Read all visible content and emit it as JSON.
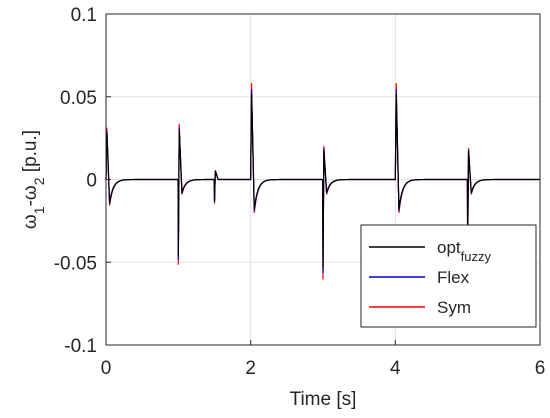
{
  "chart_data": {
    "type": "line",
    "xlabel": "Time [s]",
    "ylabel": {
      "main": "ω",
      "s1": "1",
      "mid": "-ω",
      "s2": "2",
      "unit": " [p.u.]"
    },
    "xlim": [
      0,
      6
    ],
    "ylim": [
      -0.1,
      0.1
    ],
    "xticks": [
      0,
      2,
      4,
      6
    ],
    "xtick_labels": [
      "0",
      "2",
      "4",
      "6"
    ],
    "yticks": [
      0.1,
      0.05,
      0,
      -0.05,
      -0.1
    ],
    "ytick_labels": [
      "0.1",
      "0.05",
      "0",
      "-0.05",
      "-0.1"
    ],
    "grid": true,
    "legend_position": "bottom-right",
    "events": [
      {
        "t": 0.0,
        "dip": 0.0,
        "peak": 0.028,
        "trough": -0.014
      },
      {
        "t": 1.0,
        "dip": -0.046,
        "peak": 0.03,
        "trough": -0.008
      },
      {
        "t": 1.5,
        "dip": -0.013,
        "peak": 0.005,
        "trough": 0.0
      },
      {
        "t": 2.0,
        "dip": 0.0,
        "peak": 0.052,
        "trough": -0.018
      },
      {
        "t": 3.0,
        "dip": -0.054,
        "peak": 0.018,
        "trough": -0.008
      },
      {
        "t": 4.0,
        "dip": 0.0,
        "peak": 0.052,
        "trough": -0.018
      },
      {
        "t": 5.0,
        "dip": -0.04,
        "peak": 0.017,
        "trough": -0.008
      }
    ],
    "series": [
      {
        "name": "opt",
        "name_sub": "fuzzy",
        "color": "#000000",
        "scale": 1.0
      },
      {
        "name": "Flex",
        "color": "#0000CC",
        "scale": 1.05
      },
      {
        "name": "Sym",
        "color": "#FF0000",
        "scale": 1.12
      }
    ]
  }
}
